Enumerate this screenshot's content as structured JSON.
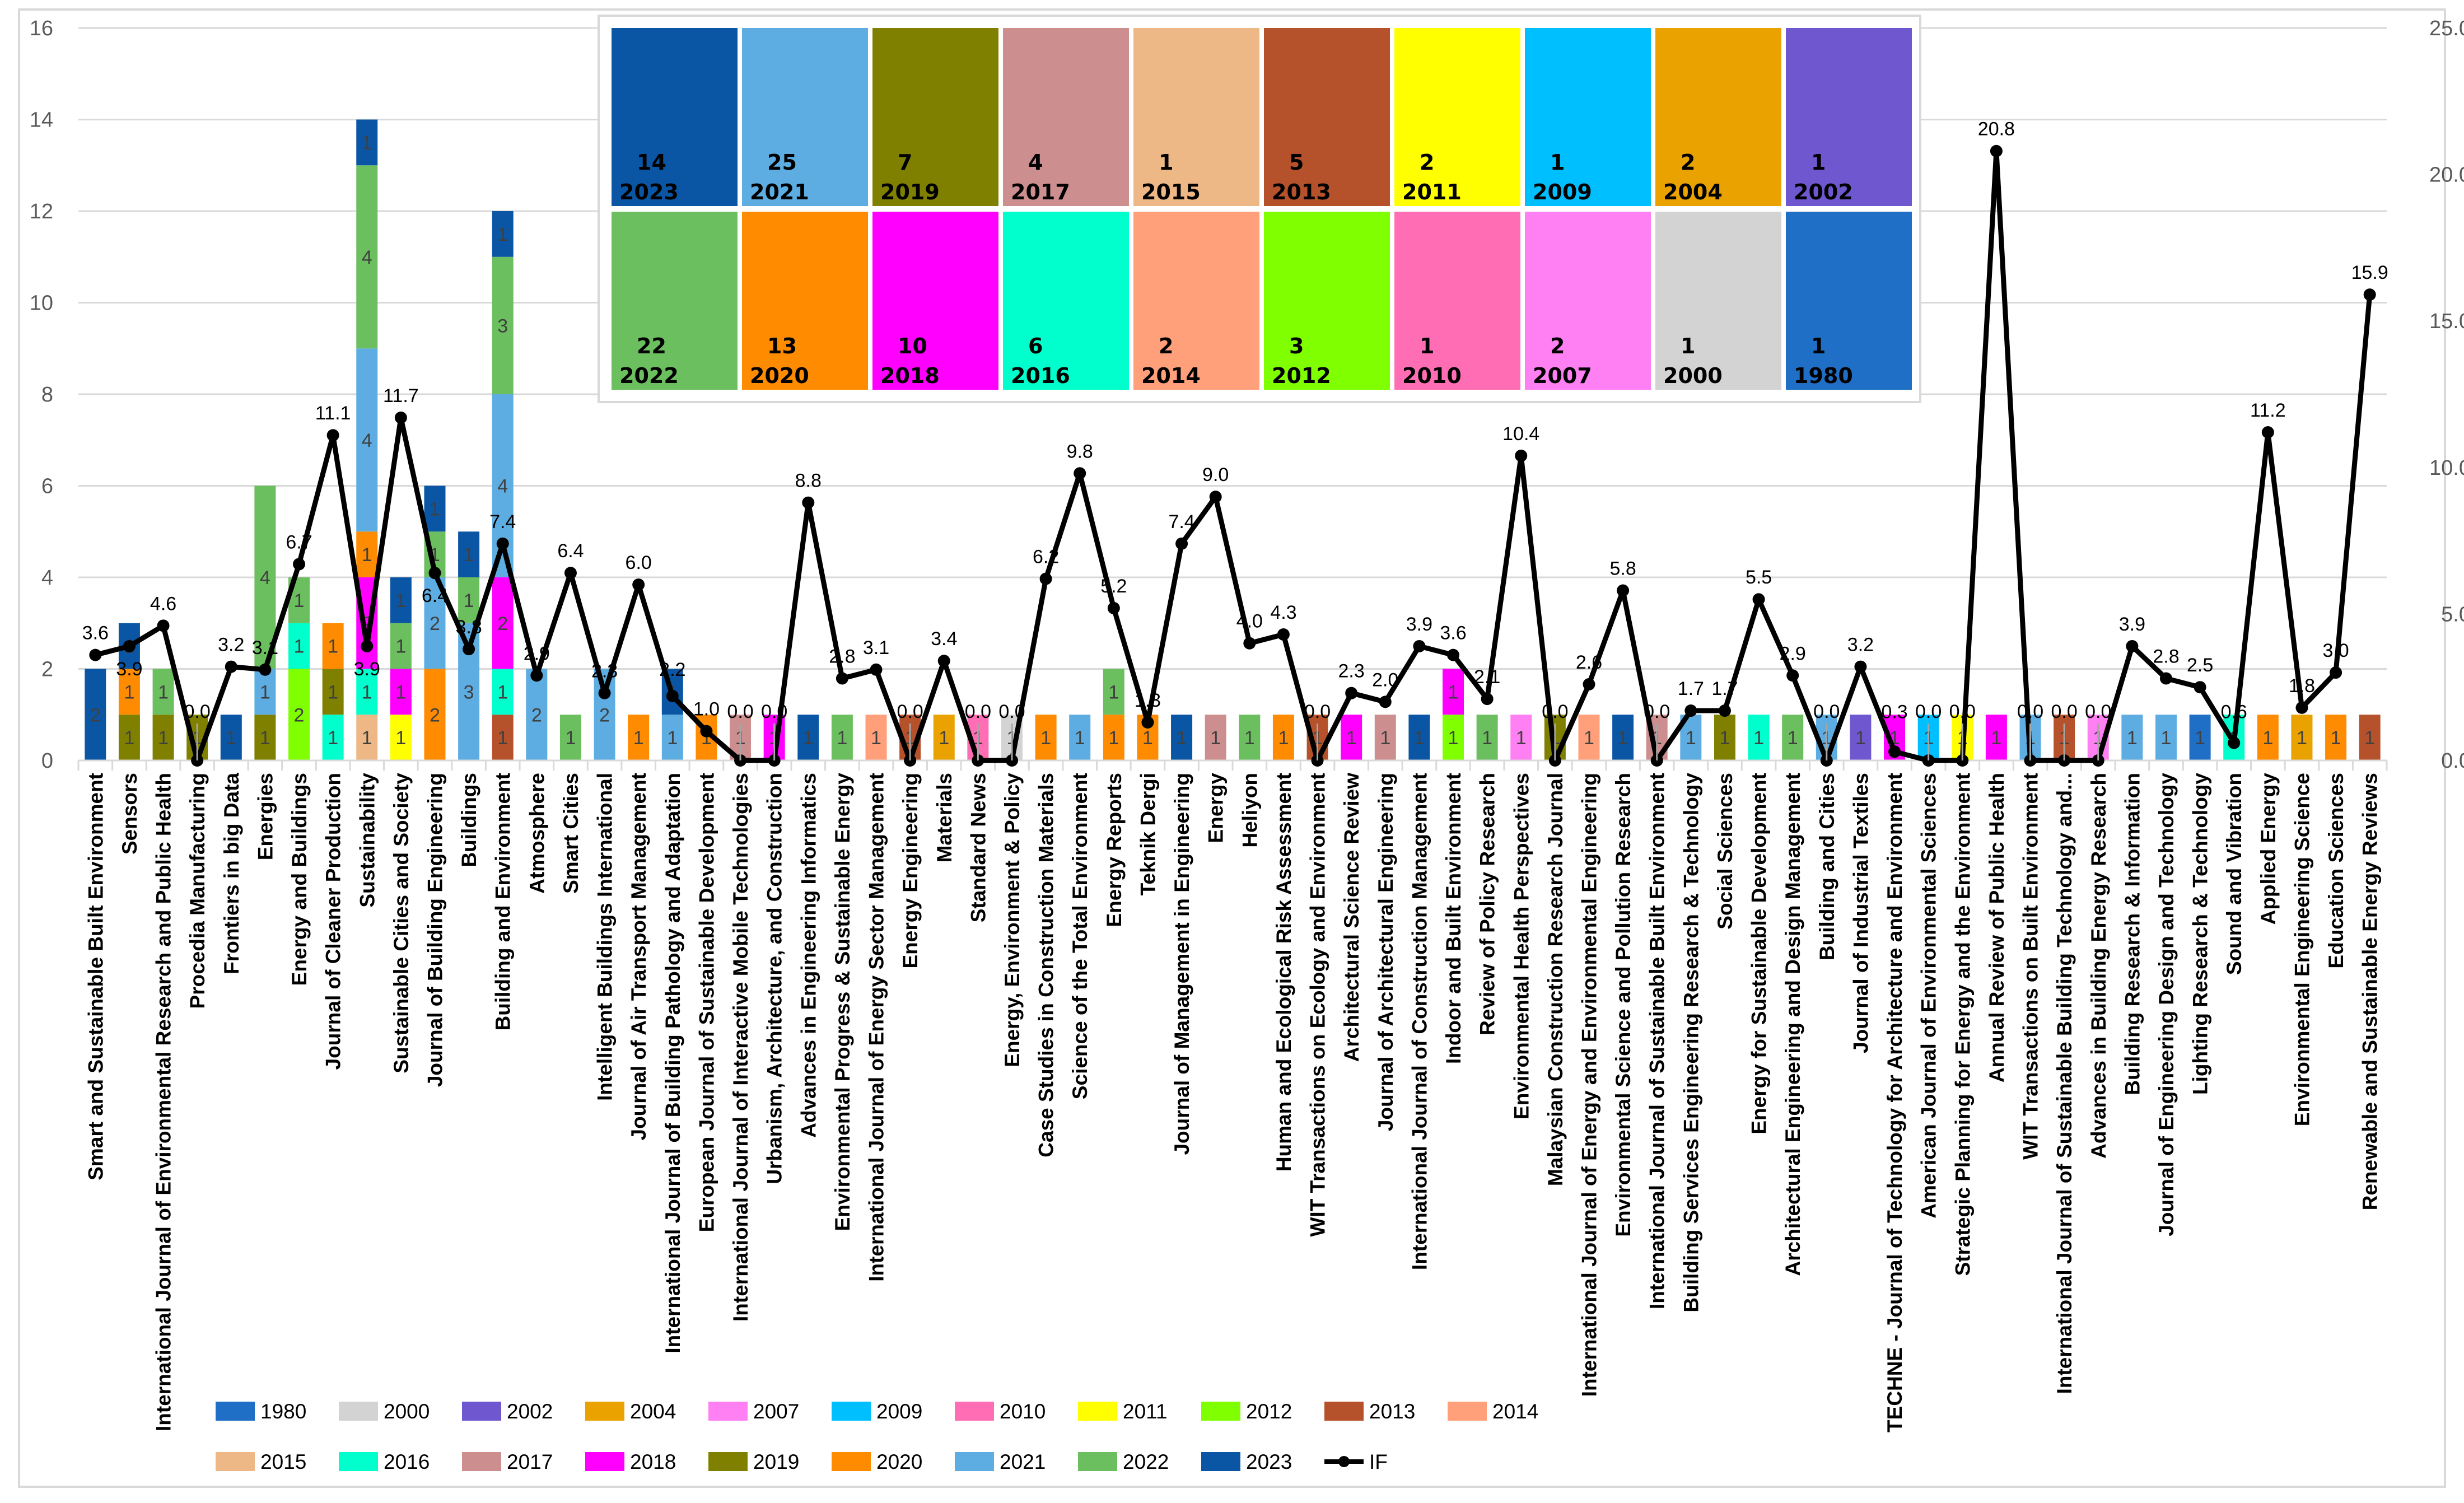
{
  "chart_data": {
    "type": "bar",
    "subtype": "stacked bar with line on secondary axis",
    "title": "",
    "xlabel": "",
    "ylabel": "",
    "ylim": [
      0,
      16
    ],
    "yticks": [
      "0",
      "2",
      "4",
      "6",
      "8",
      "10",
      "12",
      "14",
      "16"
    ],
    "y2lim": [
      0,
      25
    ],
    "y2ticks": [
      "0.0",
      "5.0",
      "10.0",
      "15.0",
      "20.0",
      "25.0"
    ],
    "grid": true,
    "legend_placement": "bottom",
    "years": [
      "1980",
      "2000",
      "2002",
      "2004",
      "2007",
      "2009",
      "2010",
      "2011",
      "2012",
      "2013",
      "2014",
      "2015",
      "2016",
      "2017",
      "2018",
      "2019",
      "2020",
      "2021",
      "2022",
      "2023"
    ],
    "colors": {
      "1980": "#1F6FC6",
      "2000": "#D3D3D3",
      "2002": "#6F58CF",
      "2004": "#E9A200",
      "2007": "#FF80F2",
      "2009": "#00BFFF",
      "2010": "#FF6EB4",
      "2011": "#FFFF00",
      "2012": "#7FFF00",
      "2013": "#B5522B",
      "2014": "#FFA07A",
      "2015": "#EDB886",
      "2016": "#00FFCC",
      "2017": "#CC8E8E",
      "2018": "#FF00FF",
      "2019": "#808000",
      "2020": "#FF8C00",
      "2021": "#5DADE2",
      "2022": "#6CBF5F",
      "2023": "#0B56A4"
    },
    "line_series_name": "IF",
    "line_color": "#000000",
    "categories": [
      {
        "name": "Smart and Sustainable Built Environment",
        "counts": {
          "2023": 2
        },
        "if": "3.6"
      },
      {
        "name": "Sensors",
        "counts": {
          "2019": 1,
          "2020": 1,
          "2023": 1
        },
        "if": "3.9"
      },
      {
        "name": "International Journal of Environmental Research and Public Health",
        "counts": {
          "2019": 1,
          "2022": 1
        },
        "if": "4.6"
      },
      {
        "name": "Procedia Manufacturing",
        "counts": {
          "2019": 1
        },
        "if": "0.0"
      },
      {
        "name": "Frontiers in big Data",
        "counts": {
          "2023": 1
        },
        "if": "3.2"
      },
      {
        "name": "Energies",
        "counts": {
          "2019": 1,
          "2021": 1,
          "2022": 4
        },
        "if": "3.1"
      },
      {
        "name": "Energy and Buildings",
        "counts": {
          "2012": 2,
          "2016": 1,
          "2022": 1
        },
        "if": "6.7"
      },
      {
        "name": "Journal of Cleaner Production",
        "counts": {
          "2016": 1,
          "2019": 1,
          "2020": 1
        },
        "if": "11.1"
      },
      {
        "name": "Sustainability",
        "counts": {
          "2015": 1,
          "2016": 1,
          "2018": 2,
          "2020": 1,
          "2021": 4,
          "2022": 4,
          "2023": 1
        },
        "if": "3.9"
      },
      {
        "name": "Sustainable Cities and Society",
        "counts": {
          "2011": 1,
          "2018": 1,
          "2022": 1,
          "2023": 1
        },
        "if": "11.7"
      },
      {
        "name": "Journal of Building Engineering",
        "counts": {
          "2020": 2,
          "2021": 2,
          "2022": 1,
          "2023": 1
        },
        "if": "6.4"
      },
      {
        "name": "Buildings",
        "counts": {
          "2021": 3,
          "2022": 1,
          "2023": 1
        },
        "if": "3.8"
      },
      {
        "name": "Building and Environment",
        "counts": {
          "2013": 1,
          "2016": 1,
          "2018": 2,
          "2021": 4,
          "2022": 3,
          "2023": 1
        },
        "if": "7.4"
      },
      {
        "name": "Atmosphere",
        "counts": {
          "2021": 2
        },
        "if": "2.9"
      },
      {
        "name": "Smart Cities",
        "counts": {
          "2022": 1
        },
        "if": "6.4"
      },
      {
        "name": "Intelligent Buildings International",
        "counts": {
          "2021": 2
        },
        "if": "2.3"
      },
      {
        "name": "Journal of Air Transport Management",
        "counts": {
          "2020": 1
        },
        "if": "6.0"
      },
      {
        "name": "International Journal of Building Pathology and Adaptation",
        "counts": {
          "2021": 1,
          "2023": 1
        },
        "if": "2.2"
      },
      {
        "name": "European Journal of Sustainable Development",
        "counts": {
          "2020": 1
        },
        "if": "1.0"
      },
      {
        "name": "International Journal of Interactive Mobile Technologies",
        "counts": {
          "2017": 1
        },
        "if": "0.0"
      },
      {
        "name": "Urbanism, Architecture, and Construction",
        "counts": {
          "2018": 1
        },
        "if": "0.0"
      },
      {
        "name": "Advances in Engineering Informatics",
        "counts": {
          "2023": 1
        },
        "if": "8.8"
      },
      {
        "name": "Environmental Progress & Sustainable Energy",
        "counts": {
          "2022": 1
        },
        "if": "2.8"
      },
      {
        "name": "International Journal of Energy Sector Management",
        "counts": {
          "2014": 1
        },
        "if": "3.1"
      },
      {
        "name": "Energy Engineering",
        "counts": {
          "2013": 1
        },
        "if": "0.0"
      },
      {
        "name": "Materials",
        "counts": {
          "2004": 1
        },
        "if": "3.4"
      },
      {
        "name": "Standard News",
        "counts": {
          "2010": 1
        },
        "if": "0.0"
      },
      {
        "name": "Energy, Environment & Policy",
        "counts": {
          "2000": 1
        },
        "if": "0.0"
      },
      {
        "name": "Case Studies in Construction Materials",
        "counts": {
          "2020": 1
        },
        "if": "6.2"
      },
      {
        "name": "Science of the Total Environment",
        "counts": {
          "2021": 1
        },
        "if": "9.8"
      },
      {
        "name": "Energy Reports",
        "counts": {
          "2020": 1,
          "2022": 1
        },
        "if": "5.2"
      },
      {
        "name": "Teknik Dergi",
        "counts": {
          "2020": 1
        },
        "if": "1.3"
      },
      {
        "name": "Journal of Management in Engineering",
        "counts": {
          "2023": 1
        },
        "if": "7.4"
      },
      {
        "name": "Energy",
        "counts": {
          "2017": 1
        },
        "if": "9.0"
      },
      {
        "name": "Heliyon",
        "counts": {
          "2022": 1
        },
        "if": "4.0"
      },
      {
        "name": "Human and Ecological Risk Assessment",
        "counts": {
          "2020": 1
        },
        "if": "4.3"
      },
      {
        "name": "WIT Transactions on Ecology and Environment",
        "counts": {
          "2013": 1
        },
        "if": "0.0"
      },
      {
        "name": "Architectural Science Review",
        "counts": {
          "2018": 1
        },
        "if": "2.3"
      },
      {
        "name": "Journal of Architectural Engineering",
        "counts": {
          "2017": 1
        },
        "if": "2.0"
      },
      {
        "name": "International Journal of Construction Management",
        "counts": {
          "2023": 1
        },
        "if": "3.9"
      },
      {
        "name": "Indoor and Built Environment",
        "counts": {
          "2012": 1,
          "2018": 1
        },
        "if": "3.6"
      },
      {
        "name": "Review of Policy Research",
        "counts": {
          "2022": 1
        },
        "if": "2.1"
      },
      {
        "name": "Environmental Health Perspectives",
        "counts": {
          "2007": 1
        },
        "if": "10.4"
      },
      {
        "name": "Malaysian Construction Research Journal",
        "counts": {
          "2019": 1
        },
        "if": "0.0"
      },
      {
        "name": "International Journal of Energy and Environmental Engineering",
        "counts": {
          "2014": 1
        },
        "if": "2.6"
      },
      {
        "name": "Environmental Science and Pollution Research",
        "counts": {
          "2023": 1
        },
        "if": "5.8"
      },
      {
        "name": "International Journal of Sustainable Built Environment",
        "counts": {
          "2017": 1
        },
        "if": "0.0"
      },
      {
        "name": "Building Services Engineering Research & Technology",
        "counts": {
          "2021": 1
        },
        "if": "1.7"
      },
      {
        "name": "Social Sciences",
        "counts": {
          "2019": 1
        },
        "if": "1.7"
      },
      {
        "name": "Energy for Sustainable Development",
        "counts": {
          "2016": 1
        },
        "if": "5.5"
      },
      {
        "name": "Architectural Engineering and Design Management",
        "counts": {
          "2022": 1
        },
        "if": "2.9"
      },
      {
        "name": "Building and Cities",
        "counts": {
          "2021": 1
        },
        "if": "0.0"
      },
      {
        "name": "Journal of Industrial Textiles",
        "counts": {
          "2002": 1
        },
        "if": "3.2"
      },
      {
        "name": "TECHNE - Journal of Technology for Architecture and Environment",
        "counts": {
          "2018": 1
        },
        "if": "0.3"
      },
      {
        "name": "American Journal of Environmental Sciences",
        "counts": {
          "2009": 1
        },
        "if": "0.0"
      },
      {
        "name": "Strategic Planning for Energy and the Environment",
        "counts": {
          "2011": 1
        },
        "if": "0.0"
      },
      {
        "name": "Annual Review of Public Health",
        "counts": {
          "2018": 1
        },
        "if": "20.8"
      },
      {
        "name": "WIT Transactions on Built Environment",
        "counts": {
          "2021": 1
        },
        "if": "0.0"
      },
      {
        "name": "International Journal of Sustainable Building Technology and...",
        "counts": {
          "2013": 1
        },
        "if": "0.0"
      },
      {
        "name": "Advances in Building Energy Research",
        "counts": {
          "2007": 1
        },
        "if": "0.0"
      },
      {
        "name": "Building Research & Information",
        "counts": {
          "2021": 1
        },
        "if": "3.9"
      },
      {
        "name": "Journal of Engineering Design and Technology",
        "counts": {
          "2021": 1
        },
        "if": "2.8"
      },
      {
        "name": "Lighting Research & Technology",
        "counts": {
          "1980": 1
        },
        "if": "2.5"
      },
      {
        "name": "Sound and Vibration",
        "counts": {
          "2016": 1
        },
        "if": "0.6"
      },
      {
        "name": "Applied Energy",
        "counts": {
          "2020": 1
        },
        "if": "11.2"
      },
      {
        "name": "Environmental Engineering Science",
        "counts": {
          "2004": 1
        },
        "if": "1.8"
      },
      {
        "name": "Education Sciences",
        "counts": {
          "2020": 1
        },
        "if": "3.0"
      },
      {
        "name": "Renewable and Sustainable Energy Reviews",
        "counts": {
          "2013": 1
        },
        "if": "15.9"
      }
    ],
    "treemap_summary": {
      "row1": [
        {
          "count": "14",
          "year": "2023"
        },
        {
          "count": "25",
          "year": "2021"
        },
        {
          "count": "7",
          "year": "2019"
        },
        {
          "count": "4",
          "year": "2017"
        },
        {
          "count": "1",
          "year": "2015"
        },
        {
          "count": "5",
          "year": "2013"
        },
        {
          "count": "2",
          "year": "2011"
        },
        {
          "count": "1",
          "year": "2009"
        },
        {
          "count": "2",
          "year": "2004"
        },
        {
          "count": "1",
          "year": "2002"
        }
      ],
      "row2": [
        {
          "count": "22",
          "year": "2022"
        },
        {
          "count": "13",
          "year": "2020"
        },
        {
          "count": "10",
          "year": "2018"
        },
        {
          "count": "6",
          "year": "2016"
        },
        {
          "count": "2",
          "year": "2014"
        },
        {
          "count": "3",
          "year": "2012"
        },
        {
          "count": "1",
          "year": "2010"
        },
        {
          "count": "2",
          "year": "2007"
        },
        {
          "count": "1",
          "year": "2000"
        },
        {
          "count": "1",
          "year": "1980"
        }
      ]
    }
  }
}
